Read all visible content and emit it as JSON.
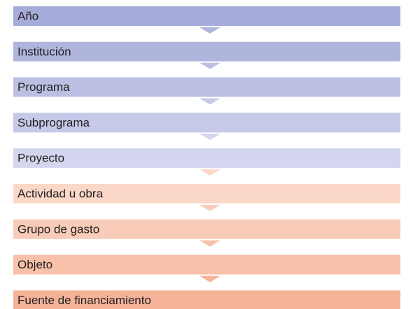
{
  "nodes": [
    {
      "label": "Año"
    },
    {
      "label": "Institución"
    },
    {
      "label": "Programa"
    },
    {
      "label": "Subprograma"
    },
    {
      "label": "Proyecto"
    },
    {
      "label": "Actividad u obra"
    },
    {
      "label": "Grupo de gasto"
    },
    {
      "label": "Objeto"
    },
    {
      "label": "Fuente de financiamiento"
    }
  ]
}
